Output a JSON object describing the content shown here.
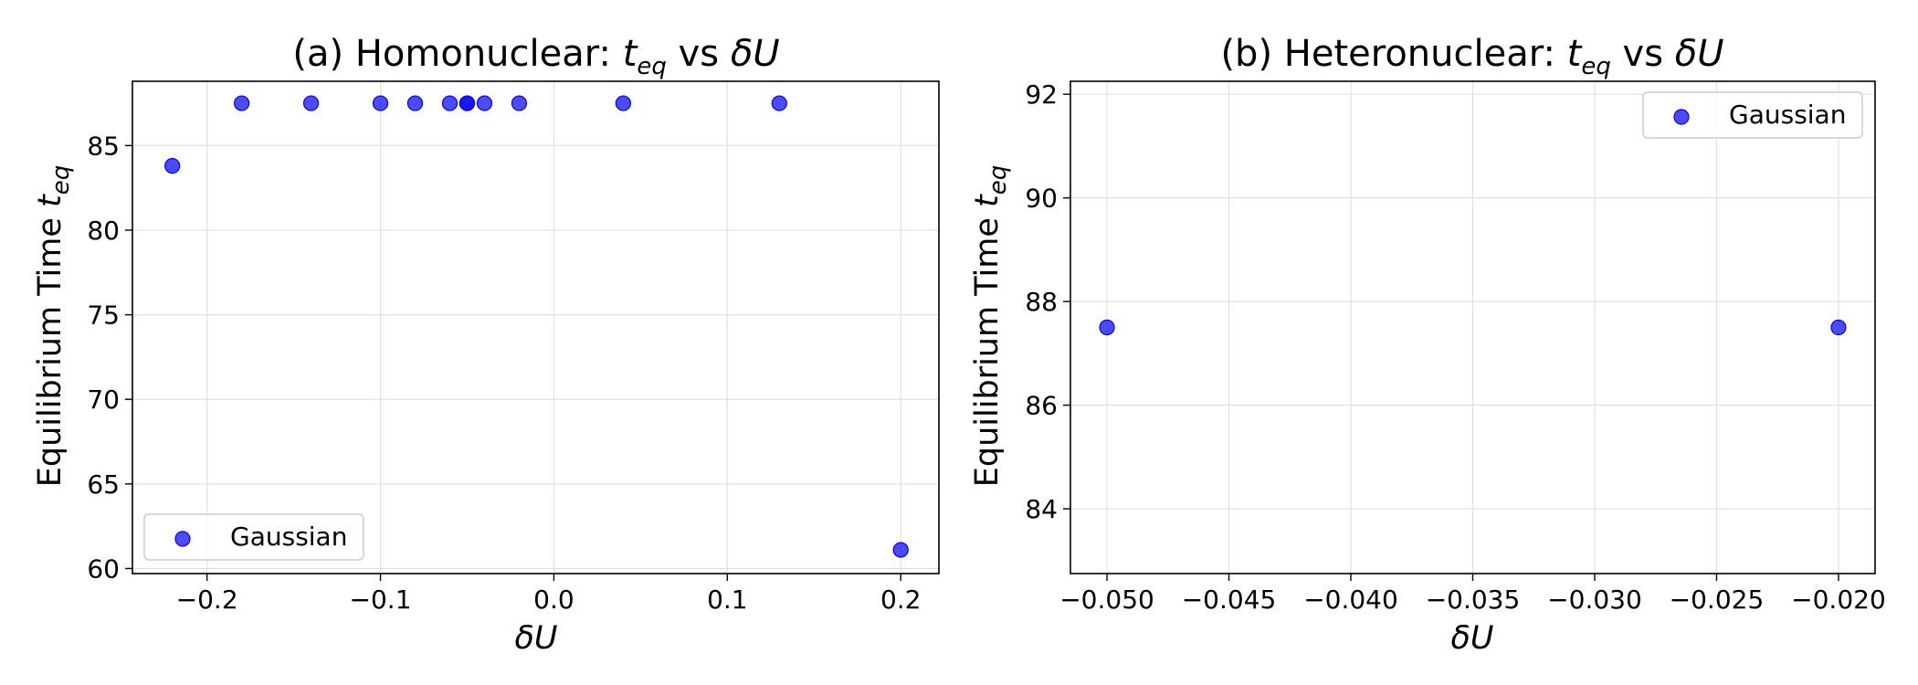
{
  "chart_data": [
    {
      "type": "scatter",
      "title": {
        "prefix": "(a) Homonuclear: ",
        "t": "t",
        "sub": "eq",
        "vs": " vs ",
        "du": "δU"
      },
      "xlabel": "δU",
      "ylabel": {
        "text": "Equilibrium Time ",
        "t": "t",
        "sub": "eq"
      },
      "xlim": [
        -0.243,
        0.222
      ],
      "ylim": [
        59.7,
        88.8
      ],
      "xticks": [
        -0.2,
        -0.1,
        0.0,
        0.1,
        0.2
      ],
      "xtick_labels": [
        "−0.2",
        "−0.1",
        "0.0",
        "0.1",
        "0.2"
      ],
      "yticks": [
        60,
        65,
        70,
        75,
        80,
        85
      ],
      "ytick_labels": [
        "60",
        "65",
        "70",
        "75",
        "80",
        "85"
      ],
      "grid": true,
      "legend_position": "lower-left",
      "series": [
        {
          "name": "Gaussian",
          "color": "#0000ff",
          "points": [
            {
              "x": -0.22,
              "y": 83.8
            },
            {
              "x": -0.18,
              "y": 87.5
            },
            {
              "x": -0.14,
              "y": 87.5
            },
            {
              "x": -0.1,
              "y": 87.5
            },
            {
              "x": -0.08,
              "y": 87.5
            },
            {
              "x": -0.06,
              "y": 87.5
            },
            {
              "x": -0.05,
              "y": 87.5
            },
            {
              "x": -0.05,
              "y": 87.5
            },
            {
              "x": -0.04,
              "y": 87.5
            },
            {
              "x": -0.02,
              "y": 87.5
            },
            {
              "x": 0.04,
              "y": 87.5
            },
            {
              "x": 0.13,
              "y": 87.5
            },
            {
              "x": 0.2,
              "y": 61.1
            }
          ]
        }
      ]
    },
    {
      "type": "scatter",
      "title": {
        "prefix": "(b) Heteronuclear: ",
        "t": "t",
        "sub": "eq",
        "vs": " vs ",
        "du": "δU"
      },
      "xlabel": "δU",
      "ylabel": {
        "text": "Equilibrium Time ",
        "t": "t",
        "sub": "eq"
      },
      "xlim": [
        -0.0515,
        -0.0185
      ],
      "ylim": [
        82.75,
        92.25
      ],
      "xticks": [
        -0.05,
        -0.045,
        -0.04,
        -0.035,
        -0.03,
        -0.025,
        -0.02
      ],
      "xtick_labels": [
        "−0.050",
        "−0.045",
        "−0.040",
        "−0.035",
        "−0.030",
        "−0.025",
        "−0.020"
      ],
      "yticks": [
        84,
        86,
        88,
        90,
        92
      ],
      "ytick_labels": [
        "84",
        "86",
        "88",
        "90",
        "92"
      ],
      "grid": true,
      "legend_position": "upper-right",
      "series": [
        {
          "name": "Gaussian",
          "color": "#0000ff",
          "points": [
            {
              "x": -0.05,
              "y": 87.5
            },
            {
              "x": -0.02,
              "y": 87.5
            }
          ]
        }
      ]
    }
  ]
}
